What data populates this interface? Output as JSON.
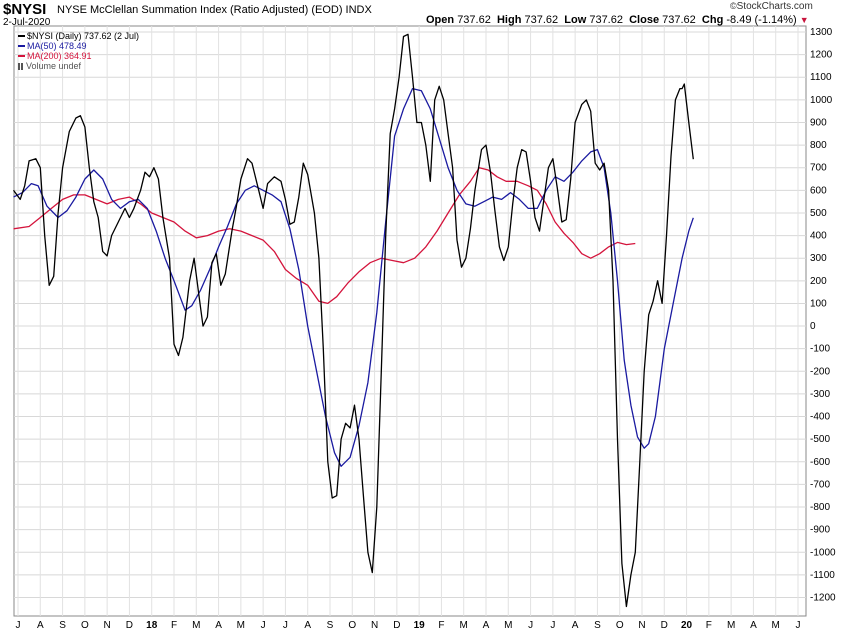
{
  "header": {
    "symbol": "$NYSI",
    "description": "NYSE McClellan Summation Index (Ratio Adjusted) (EOD)  INDX",
    "date": "2-Jul-2020",
    "open_label": "Open",
    "open": "737.62",
    "high_label": "High",
    "high": "737.62",
    "low_label": "Low",
    "low": "737.62",
    "close_label": "Close",
    "close": "737.62",
    "chg_label": "Chg",
    "chg": "-8.49 (-1.14%)",
    "chg_icon": "down-triangle-icon",
    "brand": "StockCharts.com",
    "brand_prefix": "©"
  },
  "legend": [
    {
      "label": "$NYSI (Daily) 737.62 (2 Jul)",
      "color": "#000000"
    },
    {
      "label": "MA(50) 478.49",
      "color": "#1a1aa0"
    },
    {
      "label": "MA(200) 364.91",
      "color": "#d4143c"
    },
    {
      "label": "Volume undef",
      "color": "#555555",
      "icon": "bar-icon"
    }
  ],
  "chart_data": {
    "type": "line",
    "title": "NYSE McClellan Summation Index (Ratio Adjusted) (EOD)",
    "ylim": [
      -1300,
      1350
    ],
    "grid": true,
    "yticks": [
      1300,
      1200,
      1100,
      1000,
      900,
      800,
      700,
      600,
      500,
      400,
      300,
      200,
      100,
      0,
      -100,
      -200,
      -300,
      -400,
      -500,
      -600,
      -700,
      -800,
      -900,
      -1000,
      -1100,
      -1200
    ],
    "xtick_labels": [
      "J",
      "A",
      "S",
      "O",
      "N",
      "D",
      "18",
      "F",
      "M",
      "A",
      "M",
      "J",
      "J",
      "A",
      "S",
      "O",
      "N",
      "D",
      "19",
      "F",
      "M",
      "A",
      "M",
      "J",
      "J",
      "A",
      "S",
      "O",
      "N",
      "D",
      "20",
      "F",
      "M",
      "A",
      "M",
      "J"
    ],
    "xticks_t": [
      0,
      1,
      2,
      3,
      4,
      5,
      6,
      7,
      8,
      9,
      10,
      11,
      12,
      13,
      14,
      15,
      16,
      17,
      18,
      19,
      20,
      21,
      22,
      23,
      24,
      25,
      26,
      27,
      28,
      29,
      30,
      31,
      32,
      33,
      34,
      35
    ],
    "x_start": "2017-07",
    "series": [
      {
        "name": "$NYSI",
        "color": "#000000",
        "points": [
          [
            -0.2,
            600
          ],
          [
            0.1,
            560
          ],
          [
            0.3,
            620
          ],
          [
            0.5,
            730
          ],
          [
            0.8,
            740
          ],
          [
            1.0,
            700
          ],
          [
            1.2,
            400
          ],
          [
            1.4,
            180
          ],
          [
            1.6,
            220
          ],
          [
            1.8,
            500
          ],
          [
            2.0,
            700
          ],
          [
            2.3,
            860
          ],
          [
            2.6,
            920
          ],
          [
            2.8,
            930
          ],
          [
            3.0,
            880
          ],
          [
            3.2,
            700
          ],
          [
            3.4,
            550
          ],
          [
            3.6,
            480
          ],
          [
            3.8,
            330
          ],
          [
            4.0,
            310
          ],
          [
            4.2,
            400
          ],
          [
            4.5,
            460
          ],
          [
            4.8,
            520
          ],
          [
            5.0,
            480
          ],
          [
            5.2,
            520
          ],
          [
            5.5,
            600
          ],
          [
            5.7,
            680
          ],
          [
            5.9,
            660
          ],
          [
            6.1,
            700
          ],
          [
            6.3,
            650
          ],
          [
            6.5,
            480
          ],
          [
            6.8,
            300
          ],
          [
            7.0,
            -80
          ],
          [
            7.2,
            -130
          ],
          [
            7.4,
            -50
          ],
          [
            7.7,
            200
          ],
          [
            7.9,
            300
          ],
          [
            8.1,
            150
          ],
          [
            8.3,
            0
          ],
          [
            8.5,
            40
          ],
          [
            8.7,
            280
          ],
          [
            8.9,
            320
          ],
          [
            9.1,
            180
          ],
          [
            9.3,
            230
          ],
          [
            9.6,
            420
          ],
          [
            9.8,
            530
          ],
          [
            10.0,
            650
          ],
          [
            10.3,
            740
          ],
          [
            10.5,
            720
          ],
          [
            10.8,
            600
          ],
          [
            11.0,
            520
          ],
          [
            11.2,
            630
          ],
          [
            11.5,
            660
          ],
          [
            11.8,
            640
          ],
          [
            12.0,
            560
          ],
          [
            12.2,
            450
          ],
          [
            12.4,
            460
          ],
          [
            12.6,
            570
          ],
          [
            12.8,
            720
          ],
          [
            13.0,
            670
          ],
          [
            13.3,
            500
          ],
          [
            13.5,
            300
          ],
          [
            13.7,
            -100
          ],
          [
            13.9,
            -600
          ],
          [
            14.1,
            -760
          ],
          [
            14.3,
            -750
          ],
          [
            14.5,
            -500
          ],
          [
            14.7,
            -430
          ],
          [
            14.9,
            -450
          ],
          [
            15.1,
            -350
          ],
          [
            15.3,
            -500
          ],
          [
            15.5,
            -750
          ],
          [
            15.7,
            -1000
          ],
          [
            15.9,
            -1090
          ],
          [
            16.1,
            -800
          ],
          [
            16.3,
            -200
          ],
          [
            16.5,
            400
          ],
          [
            16.7,
            850
          ],
          [
            16.9,
            960
          ],
          [
            17.1,
            1100
          ],
          [
            17.3,
            1280
          ],
          [
            17.5,
            1290
          ],
          [
            17.7,
            1100
          ],
          [
            17.9,
            900
          ],
          [
            18.1,
            900
          ],
          [
            18.3,
            800
          ],
          [
            18.5,
            640
          ],
          [
            18.7,
            1000
          ],
          [
            18.9,
            1060
          ],
          [
            19.1,
            1000
          ],
          [
            19.3,
            850
          ],
          [
            19.5,
            700
          ],
          [
            19.7,
            380
          ],
          [
            19.9,
            260
          ],
          [
            20.1,
            300
          ],
          [
            20.3,
            430
          ],
          [
            20.5,
            600
          ],
          [
            20.8,
            780
          ],
          [
            21.0,
            800
          ],
          [
            21.2,
            680
          ],
          [
            21.4,
            510
          ],
          [
            21.6,
            350
          ],
          [
            21.8,
            290
          ],
          [
            22.0,
            350
          ],
          [
            22.2,
            540
          ],
          [
            22.4,
            700
          ],
          [
            22.6,
            780
          ],
          [
            22.8,
            770
          ],
          [
            23.0,
            640
          ],
          [
            23.2,
            480
          ],
          [
            23.4,
            420
          ],
          [
            23.6,
            560
          ],
          [
            23.8,
            700
          ],
          [
            24.0,
            740
          ],
          [
            24.2,
            610
          ],
          [
            24.4,
            460
          ],
          [
            24.6,
            470
          ],
          [
            24.8,
            650
          ],
          [
            25.0,
            900
          ],
          [
            25.3,
            980
          ],
          [
            25.5,
            1000
          ],
          [
            25.7,
            950
          ],
          [
            25.9,
            720
          ],
          [
            26.1,
            690
          ],
          [
            26.3,
            720
          ],
          [
            26.5,
            600
          ],
          [
            26.7,
            200
          ],
          [
            26.9,
            -500
          ],
          [
            27.1,
            -1050
          ],
          [
            27.3,
            -1240
          ],
          [
            27.5,
            -1100
          ],
          [
            27.7,
            -1000
          ],
          [
            27.9,
            -600
          ],
          [
            28.1,
            -200
          ],
          [
            28.3,
            50
          ],
          [
            28.5,
            110
          ],
          [
            28.7,
            200
          ],
          [
            28.9,
            100
          ],
          [
            29.1,
            400
          ],
          [
            29.3,
            750
          ],
          [
            29.5,
            1000
          ],
          [
            29.7,
            1050
          ],
          [
            29.8,
            1050
          ],
          [
            29.9,
            1070
          ],
          [
            30.1,
            900
          ],
          [
            30.3,
            737.62
          ]
        ]
      },
      {
        "name": "MA(50)",
        "color": "#1a1aa0",
        "points": [
          [
            -0.2,
            570
          ],
          [
            0.2,
            590
          ],
          [
            0.6,
            630
          ],
          [
            0.9,
            620
          ],
          [
            1.3,
            530
          ],
          [
            1.8,
            480
          ],
          [
            2.2,
            510
          ],
          [
            2.6,
            570
          ],
          [
            3.0,
            650
          ],
          [
            3.4,
            690
          ],
          [
            3.8,
            650
          ],
          [
            4.2,
            560
          ],
          [
            4.6,
            520
          ],
          [
            5.0,
            550
          ],
          [
            5.4,
            560
          ],
          [
            5.8,
            520
          ],
          [
            6.2,
            420
          ],
          [
            6.6,
            300
          ],
          [
            7.0,
            200
          ],
          [
            7.5,
            70
          ],
          [
            7.8,
            90
          ],
          [
            8.2,
            160
          ],
          [
            8.6,
            250
          ],
          [
            9.0,
            350
          ],
          [
            9.4,
            440
          ],
          [
            9.8,
            540
          ],
          [
            10.2,
            600
          ],
          [
            10.6,
            620
          ],
          [
            11.0,
            600
          ],
          [
            11.4,
            580
          ],
          [
            11.8,
            550
          ],
          [
            12.2,
            430
          ],
          [
            12.6,
            250
          ],
          [
            13.0,
            0
          ],
          [
            13.4,
            -200
          ],
          [
            13.8,
            -400
          ],
          [
            14.2,
            -560
          ],
          [
            14.5,
            -620
          ],
          [
            14.9,
            -580
          ],
          [
            15.3,
            -440
          ],
          [
            15.7,
            -250
          ],
          [
            16.1,
            60
          ],
          [
            16.5,
            460
          ],
          [
            16.9,
            840
          ],
          [
            17.3,
            960
          ],
          [
            17.7,
            1050
          ],
          [
            18.1,
            1040
          ],
          [
            18.5,
            960
          ],
          [
            18.9,
            830
          ],
          [
            19.3,
            700
          ],
          [
            19.7,
            600
          ],
          [
            20.1,
            540
          ],
          [
            20.5,
            530
          ],
          [
            20.9,
            550
          ],
          [
            21.3,
            570
          ],
          [
            21.7,
            560
          ],
          [
            22.1,
            590
          ],
          [
            22.5,
            560
          ],
          [
            22.9,
            520
          ],
          [
            23.3,
            520
          ],
          [
            23.7,
            600
          ],
          [
            24.1,
            660
          ],
          [
            24.5,
            640
          ],
          [
            24.9,
            680
          ],
          [
            25.3,
            730
          ],
          [
            25.7,
            770
          ],
          [
            26.0,
            780
          ],
          [
            26.3,
            700
          ],
          [
            26.6,
            500
          ],
          [
            26.9,
            200
          ],
          [
            27.2,
            -150
          ],
          [
            27.5,
            -350
          ],
          [
            27.8,
            -490
          ],
          [
            28.1,
            -540
          ],
          [
            28.3,
            -520
          ],
          [
            28.6,
            -400
          ],
          [
            29.0,
            -100
          ],
          [
            29.4,
            100
          ],
          [
            29.8,
            300
          ],
          [
            30.1,
            420
          ],
          [
            30.3,
            478.49
          ]
        ]
      },
      {
        "name": "MA(200)",
        "color": "#d4143c",
        "points": [
          [
            -0.2,
            430
          ],
          [
            0.5,
            440
          ],
          [
            1.0,
            480
          ],
          [
            1.5,
            520
          ],
          [
            2.0,
            560
          ],
          [
            2.5,
            580
          ],
          [
            3.0,
            580
          ],
          [
            3.5,
            560
          ],
          [
            4.0,
            540
          ],
          [
            4.5,
            560
          ],
          [
            5.0,
            570
          ],
          [
            5.5,
            540
          ],
          [
            6.0,
            500
          ],
          [
            6.5,
            480
          ],
          [
            7.0,
            460
          ],
          [
            7.5,
            420
          ],
          [
            8.0,
            390
          ],
          [
            8.5,
            400
          ],
          [
            9.0,
            420
          ],
          [
            9.5,
            430
          ],
          [
            10.0,
            420
          ],
          [
            10.5,
            400
          ],
          [
            11.0,
            380
          ],
          [
            11.5,
            330
          ],
          [
            12.0,
            250
          ],
          [
            12.5,
            210
          ],
          [
            13.0,
            180
          ],
          [
            13.5,
            110
          ],
          [
            13.9,
            100
          ],
          [
            14.3,
            130
          ],
          [
            14.8,
            190
          ],
          [
            15.3,
            240
          ],
          [
            15.8,
            280
          ],
          [
            16.3,
            300
          ],
          [
            16.8,
            290
          ],
          [
            17.3,
            280
          ],
          [
            17.8,
            300
          ],
          [
            18.3,
            350
          ],
          [
            18.8,
            420
          ],
          [
            19.3,
            500
          ],
          [
            19.8,
            580
          ],
          [
            20.3,
            640
          ],
          [
            20.7,
            700
          ],
          [
            21.1,
            690
          ],
          [
            21.5,
            660
          ],
          [
            21.9,
            640
          ],
          [
            22.4,
            640
          ],
          [
            22.9,
            620
          ],
          [
            23.3,
            600
          ],
          [
            23.7,
            540
          ],
          [
            24.1,
            460
          ],
          [
            24.5,
            410
          ],
          [
            24.9,
            370
          ],
          [
            25.3,
            320
          ],
          [
            25.7,
            300
          ],
          [
            26.1,
            320
          ],
          [
            26.5,
            350
          ],
          [
            26.9,
            370
          ],
          [
            27.3,
            360
          ],
          [
            27.7,
            364.91
          ]
        ]
      }
    ]
  }
}
